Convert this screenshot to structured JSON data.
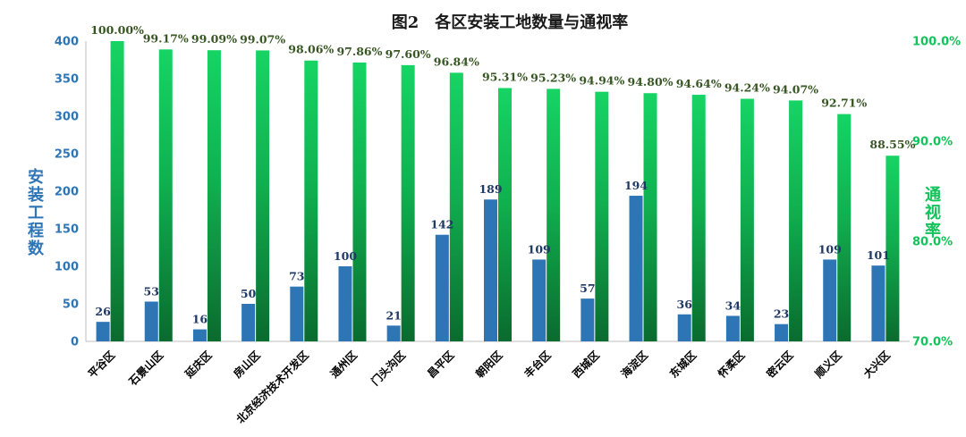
{
  "chart_data": {
    "type": "bar",
    "title": "图2　各区安装工地数量与通视率",
    "categories": [
      "平谷区",
      "石景山区",
      "延庆区",
      "房山区",
      "北京经济技术开发区",
      "通州区",
      "门头沟区",
      "昌平区",
      "朝阳区",
      "丰台区",
      "西城区",
      "海淀区",
      "东城区",
      "怀柔区",
      "密云区",
      "顺义区",
      "大兴区"
    ],
    "series": [
      {
        "name": "安装工程数",
        "axis": "left",
        "color": "#2E75B6",
        "values": [
          26,
          53,
          16,
          50,
          73,
          100,
          21,
          142,
          189,
          109,
          57,
          194,
          36,
          34,
          23,
          109,
          101
        ],
        "labels": [
          "26",
          "53",
          "16",
          "50",
          "73",
          "100",
          "21",
          "142",
          "189",
          "109",
          "57",
          "194",
          "36",
          "34",
          "23",
          "109",
          "101"
        ]
      },
      {
        "name": "通视率",
        "axis": "right",
        "color": "#12C25A",
        "values": [
          100.0,
          99.17,
          99.09,
          99.07,
          98.06,
          97.86,
          97.6,
          96.84,
          95.31,
          95.23,
          94.94,
          94.8,
          94.64,
          94.24,
          94.07,
          92.71,
          88.55
        ],
        "labels": [
          "100.00%",
          "99.17%",
          "99.09%",
          "99.07%",
          "98.06%",
          "97.86%",
          "97.60%",
          "96.84%",
          "95.31%",
          "95.23%",
          "94.94%",
          "94.80%",
          "94.64%",
          "94.24%",
          "94.07%",
          "92.71%",
          "88.55%"
        ]
      }
    ],
    "ylabel_left": "安装工程数",
    "ylabel_right": "通视率",
    "ylim_left": [
      0,
      400
    ],
    "yticks_left": [
      0,
      50,
      100,
      150,
      200,
      250,
      300,
      350,
      400
    ],
    "ylim_right": [
      70,
      100
    ],
    "yticks_right": [
      70,
      80,
      90,
      100
    ],
    "yticklabels_right": [
      "70.0%",
      "80.0%",
      "90.0%",
      "100.0%"
    ],
    "grid": false,
    "legend": "none"
  }
}
